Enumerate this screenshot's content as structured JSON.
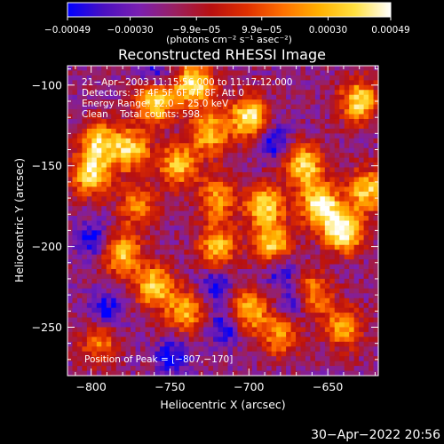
{
  "chart_data": {
    "type": "heatmap",
    "title": "Reconstructed RHESSI Image",
    "xlabel": "Heliocentric X (arcsec)",
    "ylabel": "Heliocentric Y (arcsec)",
    "xlim": [
      -815,
      -618
    ],
    "ylim": [
      -280,
      -88
    ],
    "x_ticks": [
      -800,
      -750,
      -700,
      -650
    ],
    "y_ticks": [
      -250,
      -200,
      -150,
      -100
    ],
    "x_tick_labels": [
      "−800",
      "−750",
      "−700",
      "−650"
    ],
    "y_tick_labels": [
      "−250",
      "−200",
      "−150",
      "−100"
    ],
    "colorbar": {
      "range": [
        -0.00049,
        0.00049
      ],
      "tick_values": [
        -0.00049,
        -0.0003,
        -9.9e-05,
        9.9e-05,
        0.0003,
        0.00049
      ],
      "tick_labels": [
        "−0.00049",
        "−0.00030",
        "−9.9e−05",
        "9.9e−05",
        "0.00030",
        "0.00049"
      ],
      "unit_label": "(photons cm⁻² s⁻¹ asec⁻²)",
      "colormap": [
        "#0000ff",
        "#4a10c0",
        "#7b1fb0",
        "#9a2060",
        "#b81010",
        "#e03000",
        "#ff7000",
        "#ffb000",
        "#ffe040",
        "#ffffff"
      ]
    },
    "annotations": [
      "21−Apr−2003 11:15:56.000 to 11:17:12.000",
      "Detectors: 3F 4F 5F 6F 7F 8F, Att 0",
      "Energy Range: 12.0 − 25.0 keV",
      "Clean    Total counts: 598."
    ],
    "peak_label": "Position of Peak = [−807,−170]",
    "peak": [
      -807,
      -170
    ],
    "bright_regions": [
      {
        "x": -800,
        "y": -155,
        "v": 0.8
      },
      {
        "x": -795,
        "y": -135,
        "v": 0.7
      },
      {
        "x": -775,
        "y": -140,
        "v": 0.75
      },
      {
        "x": -760,
        "y": -110,
        "v": 0.85
      },
      {
        "x": -745,
        "y": -150,
        "v": 0.7
      },
      {
        "x": -735,
        "y": -100,
        "v": 0.9
      },
      {
        "x": -725,
        "y": -130,
        "v": 0.7
      },
      {
        "x": -700,
        "y": -120,
        "v": 0.85
      },
      {
        "x": -690,
        "y": -175,
        "v": 0.8
      },
      {
        "x": -685,
        "y": -200,
        "v": 0.75
      },
      {
        "x": -665,
        "y": -150,
        "v": 0.8
      },
      {
        "x": -655,
        "y": -175,
        "v": 0.9
      },
      {
        "x": -640,
        "y": -190,
        "v": 1.0
      },
      {
        "x": -630,
        "y": -110,
        "v": 0.8
      },
      {
        "x": -625,
        "y": -165,
        "v": 0.75
      },
      {
        "x": -780,
        "y": -205,
        "v": 0.7
      },
      {
        "x": -760,
        "y": -225,
        "v": 0.75
      },
      {
        "x": -740,
        "y": -240,
        "v": 0.65
      },
      {
        "x": -720,
        "y": -200,
        "v": 0.7
      },
      {
        "x": -700,
        "y": -240,
        "v": 0.7
      },
      {
        "x": -680,
        "y": -255,
        "v": 0.55
      },
      {
        "x": -660,
        "y": -230,
        "v": 0.65
      },
      {
        "x": -640,
        "y": -250,
        "v": 0.6
      },
      {
        "x": -795,
        "y": -260,
        "v": 0.5
      },
      {
        "x": -720,
        "y": -170,
        "v": 0.6
      },
      {
        "x": -770,
        "y": -175,
        "v": 0.55
      }
    ],
    "dark_regions": [
      {
        "x": -790,
        "y": -240
      },
      {
        "x": -748,
        "y": -268
      },
      {
        "x": -715,
        "y": -250
      },
      {
        "x": -680,
        "y": -215
      },
      {
        "x": -670,
        "y": -235
      },
      {
        "x": -722,
        "y": -225
      },
      {
        "x": -760,
        "y": -95
      },
      {
        "x": -800,
        "y": -195
      },
      {
        "x": -685,
        "y": -135
      }
    ]
  },
  "footer": {
    "date": "30−Apr−2022 20:56"
  },
  "colors": {
    "background": "#000000",
    "text": "#ffffff"
  }
}
